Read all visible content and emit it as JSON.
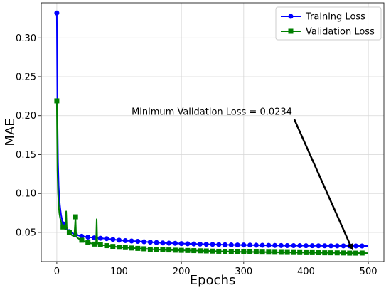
{
  "chart_data": {
    "type": "line",
    "title": "",
    "xlabel": "Epochs",
    "ylabel": "MAE",
    "xlim": [
      -25,
      525
    ],
    "ylim": [
      0.0125,
      0.345
    ],
    "xticks": [
      0,
      100,
      200,
      300,
      400,
      500
    ],
    "xtick_labels": [
      "0",
      "100",
      "200",
      "300",
      "400",
      "500"
    ],
    "yticks": [
      0.05,
      0.1,
      0.15,
      0.2,
      0.25,
      0.3
    ],
    "ytick_labels": [
      "0.05",
      "0.10",
      "0.15",
      "0.20",
      "0.25",
      "0.30"
    ],
    "grid": true,
    "legend_position": "top-right",
    "series": [
      {
        "name": "Training Loss",
        "color": "#0000ff",
        "marker": "circle",
        "marker_every": 10,
        "x": [
          0,
          1,
          2,
          3,
          4,
          5,
          6,
          7,
          8,
          9,
          10,
          12,
          15,
          18,
          20,
          25,
          30,
          35,
          40,
          45,
          50,
          60,
          70,
          80,
          90,
          100,
          110,
          120,
          130,
          140,
          150,
          160,
          170,
          180,
          190,
          200,
          210,
          220,
          230,
          240,
          250,
          260,
          270,
          280,
          290,
          300,
          310,
          320,
          330,
          340,
          350,
          360,
          370,
          380,
          390,
          400,
          410,
          420,
          430,
          440,
          450,
          460,
          470,
          480,
          490,
          499
        ],
        "y": [
          0.332,
          0.2,
          0.14,
          0.11,
          0.095,
          0.085,
          0.078,
          0.072,
          0.068,
          0.064,
          0.061,
          0.058,
          0.055,
          0.053,
          0.051,
          0.049,
          0.047,
          0.046,
          0.045,
          0.0445,
          0.044,
          0.043,
          0.0425,
          0.042,
          0.041,
          0.04,
          0.0395,
          0.039,
          0.0385,
          0.038,
          0.0375,
          0.037,
          0.0365,
          0.0362,
          0.036,
          0.0357,
          0.0354,
          0.0352,
          0.035,
          0.0348,
          0.0346,
          0.0344,
          0.0342,
          0.034,
          0.0339,
          0.0338,
          0.0337,
          0.0336,
          0.0335,
          0.0334,
          0.0333,
          0.0332,
          0.0331,
          0.033,
          0.033,
          0.0329,
          0.0329,
          0.0328,
          0.0328,
          0.0327,
          0.0327,
          0.0327,
          0.0327,
          0.0326,
          0.0326,
          0.0326
        ]
      },
      {
        "name": "Validation Loss",
        "color": "#008000",
        "marker": "square",
        "marker_every": 10,
        "x": [
          0,
          1,
          2,
          3,
          4,
          5,
          6,
          7,
          8,
          10,
          12,
          14,
          15,
          16,
          18,
          20,
          22,
          25,
          28,
          30,
          31,
          32,
          35,
          40,
          45,
          50,
          55,
          60,
          63,
          64,
          65,
          70,
          75,
          80,
          90,
          100,
          110,
          120,
          130,
          140,
          150,
          160,
          170,
          180,
          190,
          200,
          210,
          220,
          230,
          240,
          250,
          260,
          270,
          280,
          290,
          300,
          310,
          320,
          330,
          340,
          350,
          360,
          370,
          380,
          390,
          400,
          410,
          420,
          430,
          440,
          450,
          460,
          468,
          470,
          480,
          490,
          499
        ],
        "y": [
          0.219,
          0.13,
          0.1,
          0.085,
          0.075,
          0.07,
          0.066,
          0.063,
          0.06,
          0.057,
          0.055,
          0.054,
          0.077,
          0.056,
          0.053,
          0.05,
          0.048,
          0.046,
          0.045,
          0.07,
          0.046,
          0.044,
          0.042,
          0.04,
          0.038,
          0.037,
          0.036,
          0.035,
          0.036,
          0.067,
          0.036,
          0.034,
          0.0335,
          0.033,
          0.032,
          0.031,
          0.0305,
          0.03,
          0.0295,
          0.029,
          0.0285,
          0.028,
          0.0278,
          0.0275,
          0.0272,
          0.027,
          0.0268,
          0.0266,
          0.0264,
          0.0262,
          0.026,
          0.0258,
          0.0256,
          0.0254,
          0.0252,
          0.025,
          0.0249,
          0.0248,
          0.0247,
          0.0246,
          0.0245,
          0.0244,
          0.0243,
          0.0242,
          0.0241,
          0.024,
          0.024,
          0.0239,
          0.0238,
          0.0238,
          0.0237,
          0.0236,
          0.0235,
          0.0234,
          0.0234,
          0.0235,
          0.0234
        ]
      }
    ],
    "annotations": [
      {
        "text": "Minimum Validation Loss = 0.0234",
        "text_position": [
          120,
          0.2
        ],
        "arrow_to": [
          468,
          0.0234
        ]
      }
    ]
  }
}
